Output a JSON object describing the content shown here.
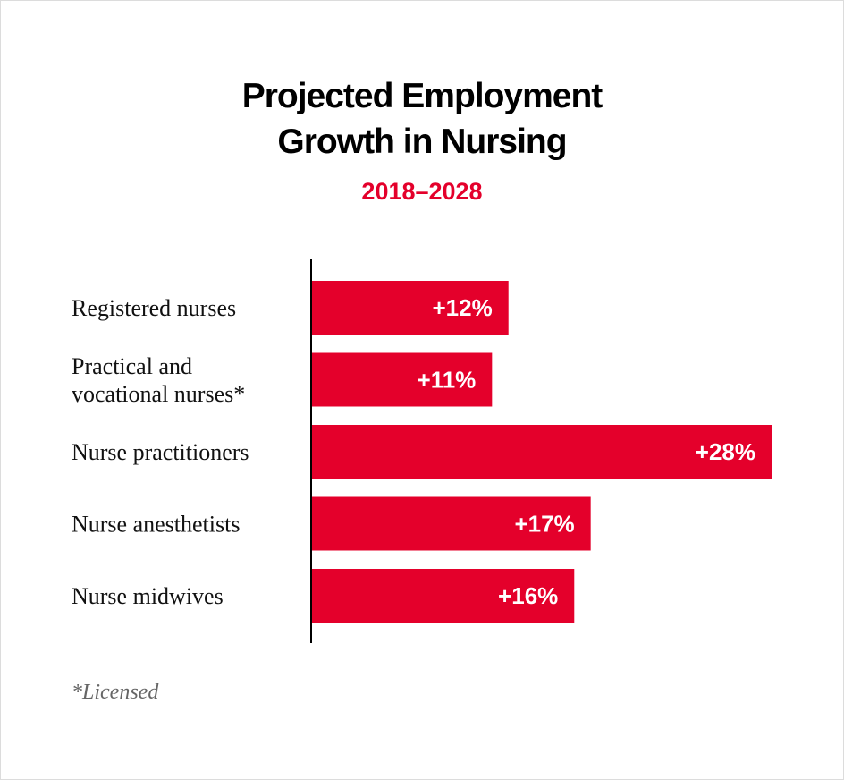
{
  "colors": {
    "bar": "#e4002b",
    "subtitle": "#e4002b",
    "axis": "#000000",
    "text": "#111111"
  },
  "chart_data": {
    "type": "bar",
    "orientation": "horizontal",
    "title_lines": [
      "Projected Employment",
      "Growth in Nursing"
    ],
    "subtitle": "2018–2028",
    "categories": [
      [
        "Registered nurses"
      ],
      [
        "Practical and",
        "vocational nurses*"
      ],
      [
        "Nurse practitioners"
      ],
      [
        "Nurse anesthetists"
      ],
      [
        "Nurse midwives"
      ]
    ],
    "values": [
      12,
      11,
      28,
      17,
      16
    ],
    "value_labels": [
      "+12%",
      "+11%",
      "+28%",
      "+17%",
      "+16%"
    ],
    "xlim": [
      0,
      28
    ],
    "grid": false,
    "legend": "none"
  },
  "footnote": "*Licensed"
}
